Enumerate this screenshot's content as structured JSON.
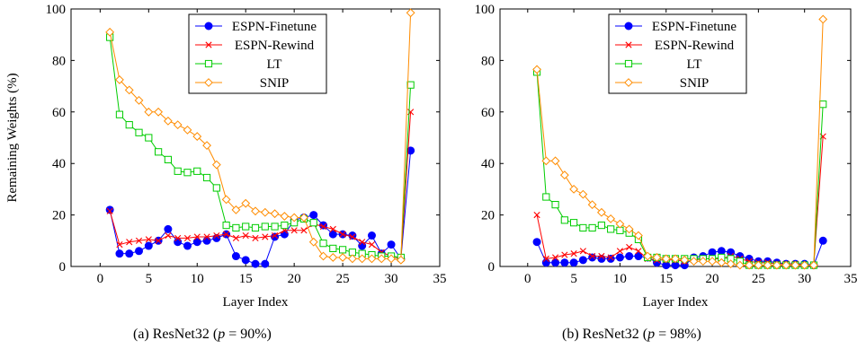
{
  "chart_data": [
    {
      "type": "line",
      "caption": {
        "prefix": "(a) ResNet32 (",
        "var": "p",
        "eq": " = 90%",
        "suffix": ")"
      },
      "xlabel": "Layer Index",
      "ylabel": "Remaining Weights (%)",
      "xlim": [
        -3,
        35
      ],
      "ylim": [
        0,
        100
      ],
      "xticks": [
        0,
        5,
        10,
        15,
        20,
        25,
        30,
        35
      ],
      "yticks": [
        0,
        20,
        40,
        60,
        80,
        100
      ],
      "legend": "top-center",
      "series": [
        {
          "name": "ESPN-Finetune",
          "color": "#0000ff",
          "marker": "dot",
          "x": [
            1,
            2,
            3,
            4,
            5,
            6,
            7,
            8,
            9,
            10,
            11,
            12,
            13,
            14,
            15,
            16,
            17,
            18,
            19,
            20,
            21,
            22,
            23,
            24,
            25,
            26,
            27,
            28,
            29,
            30,
            31,
            32
          ],
          "y": [
            22,
            5,
            5,
            6,
            8,
            10,
            14.5,
            9.5,
            8,
            9.5,
            10,
            11,
            12.5,
            4,
            2.5,
            1,
            1,
            11.5,
            12.5,
            18,
            19,
            20,
            16,
            12.5,
            12.5,
            12,
            8,
            12,
            5,
            8.5,
            3,
            45
          ]
        },
        {
          "name": "ESPN-Rewind",
          "color": "#ff0000",
          "marker": "x",
          "x": [
            1,
            2,
            3,
            4,
            5,
            6,
            7,
            8,
            9,
            10,
            11,
            12,
            13,
            14,
            15,
            16,
            17,
            18,
            19,
            20,
            21,
            22,
            23,
            24,
            25,
            26,
            27,
            28,
            29,
            30,
            31,
            32
          ],
          "y": [
            21.5,
            8.5,
            9.5,
            10,
            10.5,
            10,
            12,
            11,
            11,
            11.5,
            11.5,
            12,
            12.5,
            11,
            12,
            11,
            11.5,
            12,
            14,
            14,
            14,
            16.5,
            15.5,
            14.5,
            12.5,
            11.5,
            9.5,
            8.5,
            5.5,
            4,
            3,
            60
          ]
        },
        {
          "name": "LT",
          "color": "#00cc00",
          "marker": "square",
          "x": [
            1,
            2,
            3,
            4,
            5,
            6,
            7,
            8,
            9,
            10,
            11,
            12,
            13,
            14,
            15,
            16,
            17,
            18,
            19,
            20,
            21,
            22,
            23,
            24,
            25,
            26,
            27,
            28,
            29,
            30,
            31,
            32
          ],
          "y": [
            89,
            59,
            55,
            52,
            50,
            44.5,
            41.5,
            37,
            36.5,
            37,
            34.5,
            30.5,
            16,
            15,
            15.5,
            15,
            15.5,
            15.5,
            16,
            17,
            18.5,
            17,
            9,
            7,
            6.5,
            5.5,
            5,
            4.5,
            4,
            4,
            3.5,
            70.5
          ]
        },
        {
          "name": "SNIP",
          "color": "#ff8c00",
          "marker": "diamond",
          "x": [
            1,
            2,
            3,
            4,
            5,
            6,
            7,
            8,
            9,
            10,
            11,
            12,
            13,
            14,
            15,
            16,
            17,
            18,
            19,
            20,
            21,
            22,
            23,
            24,
            25,
            26,
            27,
            28,
            29,
            30,
            31,
            32
          ],
          "y": [
            91,
            72.5,
            68.5,
            64.5,
            60,
            60,
            56.5,
            55,
            53,
            50.5,
            47,
            39.5,
            26,
            22,
            24.5,
            21.5,
            21,
            20.5,
            19.5,
            19,
            19,
            9.5,
            4,
            3.5,
            3.5,
            3,
            3,
            3,
            3,
            3,
            2.5,
            98.5
          ]
        }
      ]
    },
    {
      "type": "line",
      "caption": {
        "prefix": "(b) ResNet32 (",
        "var": "p",
        "eq": " = 98%",
        "suffix": ")"
      },
      "xlabel": "Layer Index",
      "ylabel": "",
      "xlim": [
        -3,
        35
      ],
      "ylim": [
        0,
        100
      ],
      "xticks": [
        0,
        5,
        10,
        15,
        20,
        25,
        30,
        35
      ],
      "yticks": [
        0,
        20,
        40,
        60,
        80,
        100
      ],
      "legend": "top-center",
      "series": [
        {
          "name": "ESPN-Finetune",
          "color": "#0000ff",
          "marker": "dot",
          "x": [
            1,
            2,
            3,
            4,
            5,
            6,
            7,
            8,
            9,
            10,
            11,
            12,
            13,
            14,
            15,
            16,
            17,
            18,
            19,
            20,
            21,
            22,
            23,
            24,
            25,
            26,
            27,
            28,
            29,
            30,
            31,
            32
          ],
          "y": [
            9.5,
            1.5,
            1.5,
            1.5,
            1.5,
            2.5,
            3.5,
            3,
            3,
            3.5,
            4,
            4,
            3.5,
            1.5,
            0.5,
            0.5,
            0.5,
            3.5,
            4,
            5.5,
            6,
            5.5,
            4,
            3,
            2,
            2,
            1.5,
            1,
            1,
            1,
            0.5,
            10
          ]
        },
        {
          "name": "ESPN-Rewind",
          "color": "#ff0000",
          "marker": "x",
          "x": [
            1,
            2,
            3,
            4,
            5,
            6,
            7,
            8,
            9,
            10,
            11,
            12,
            13,
            14,
            15,
            16,
            17,
            18,
            19,
            20,
            21,
            22,
            23,
            24,
            25,
            26,
            27,
            28,
            29,
            30,
            31,
            32
          ],
          "y": [
            20,
            3,
            3.5,
            4.5,
            5,
            6,
            4,
            4,
            3.5,
            6,
            7.5,
            6,
            3,
            2.5,
            2.5,
            2.5,
            2,
            2.5,
            3,
            3,
            3,
            4,
            3,
            2,
            1.5,
            1.5,
            1,
            1,
            1,
            0.5,
            0.5,
            50.5
          ]
        },
        {
          "name": "LT",
          "color": "#00cc00",
          "marker": "square",
          "x": [
            1,
            2,
            3,
            4,
            5,
            6,
            7,
            8,
            9,
            10,
            11,
            12,
            13,
            14,
            15,
            16,
            17,
            18,
            19,
            20,
            21,
            22,
            23,
            24,
            25,
            26,
            27,
            28,
            29,
            30,
            31,
            32
          ],
          "y": [
            75.5,
            27,
            24,
            18,
            17,
            15,
            15,
            16,
            14.5,
            14,
            13,
            10.5,
            3.5,
            3.5,
            3,
            3,
            3,
            3,
            3,
            3,
            3.5,
            3,
            2,
            0.5,
            0.5,
            0.5,
            0.5,
            0.5,
            0.5,
            0.5,
            0.5,
            63
          ]
        },
        {
          "name": "SNIP",
          "color": "#ff8c00",
          "marker": "diamond",
          "x": [
            1,
            2,
            3,
            4,
            5,
            6,
            7,
            8,
            9,
            10,
            11,
            12,
            13,
            14,
            15,
            16,
            17,
            18,
            19,
            20,
            21,
            22,
            23,
            24,
            25,
            26,
            27,
            28,
            29,
            30,
            31,
            32
          ],
          "y": [
            76.5,
            41,
            41,
            35.5,
            30,
            28,
            24,
            21,
            18.5,
            16.5,
            14.5,
            12,
            4,
            3.5,
            3,
            3,
            2.5,
            2,
            2,
            2,
            1.5,
            1,
            0.5,
            0.5,
            0.5,
            0.5,
            0.5,
            0.5,
            0.5,
            0.5,
            0.5,
            96
          ]
        }
      ]
    }
  ]
}
